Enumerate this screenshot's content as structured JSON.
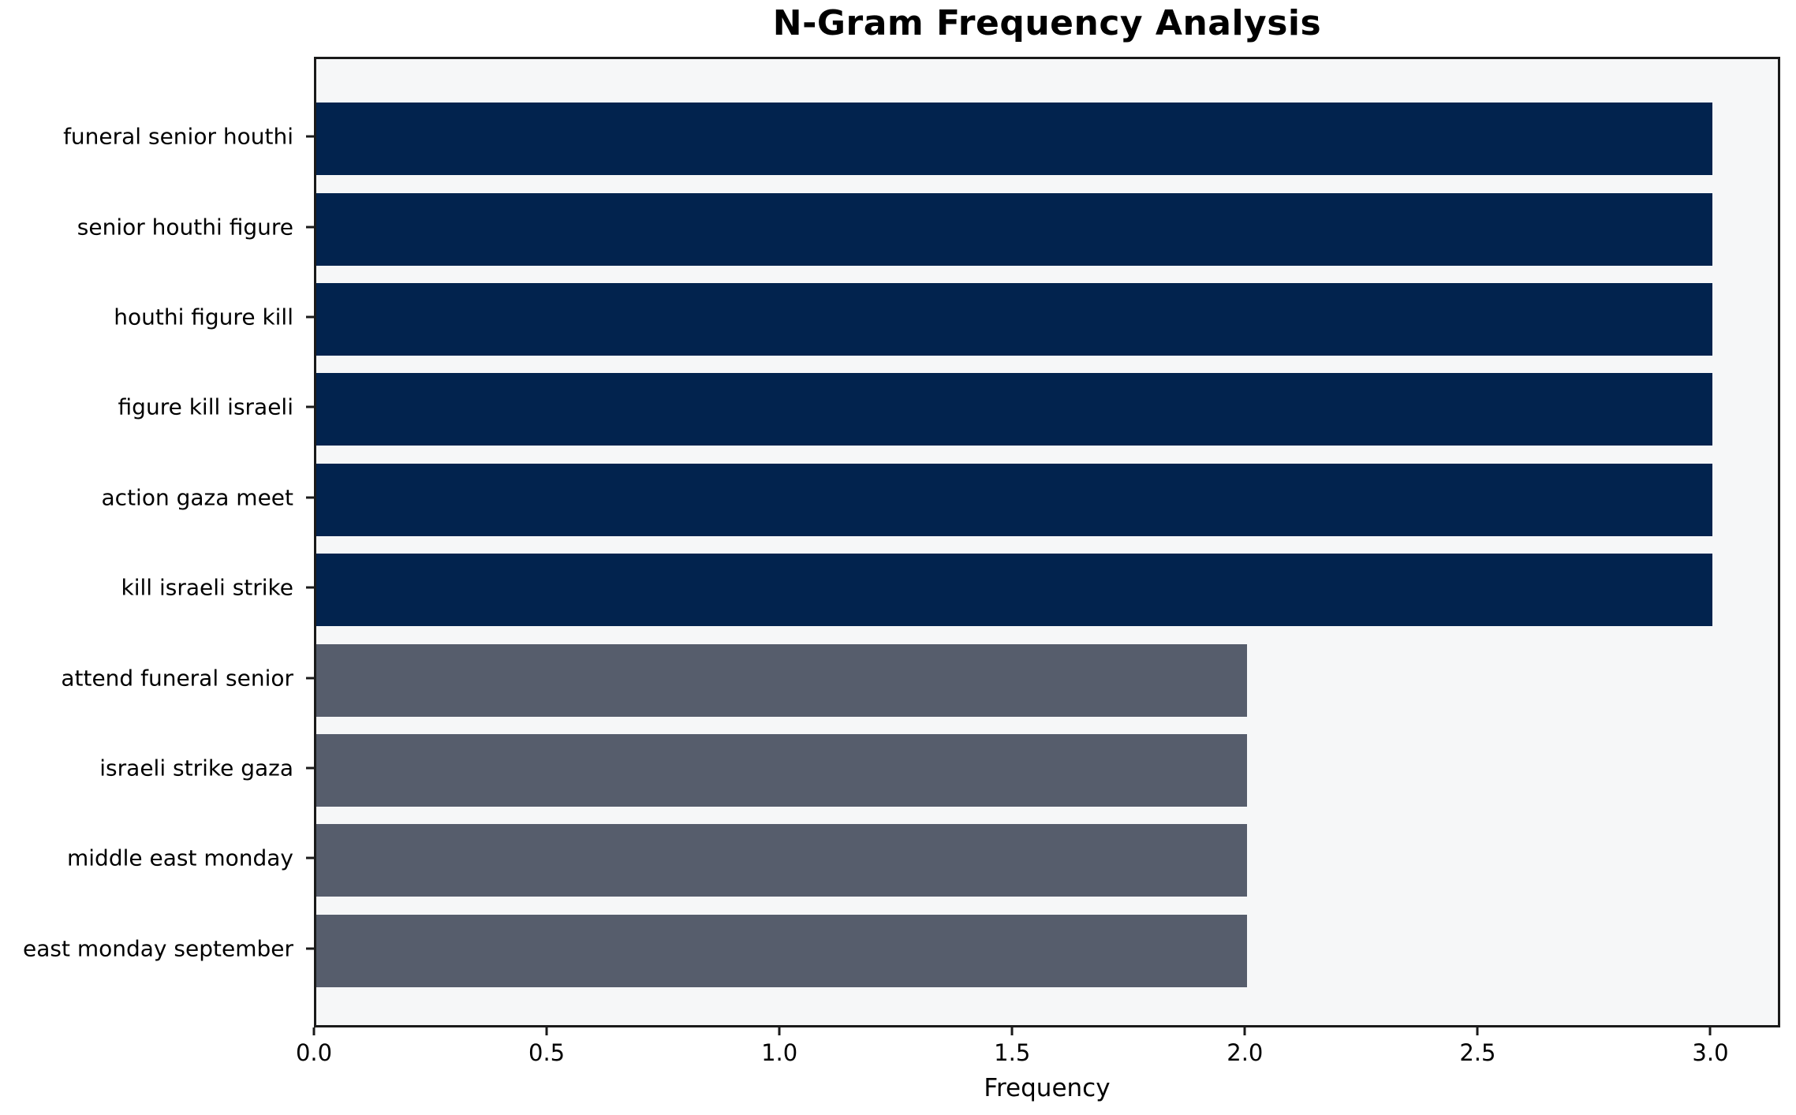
{
  "chart_data": {
    "type": "bar",
    "orientation": "horizontal",
    "title": "N-Gram Frequency Analysis",
    "xlabel": "Frequency",
    "ylabel": "",
    "categories": [
      "funeral senior houthi",
      "senior houthi figure",
      "houthi figure kill",
      "figure kill israeli",
      "action gaza meet",
      "kill israeli strike",
      "attend funeral senior",
      "israeli strike gaza",
      "middle east monday",
      "east monday september"
    ],
    "values": [
      3,
      3,
      3,
      3,
      3,
      3,
      2,
      2,
      2,
      2
    ],
    "bar_colors": [
      "#02234e",
      "#02234e",
      "#02234e",
      "#02234e",
      "#02234e",
      "#02234e",
      "#565d6c",
      "#565d6c",
      "#565d6c",
      "#565d6c"
    ],
    "xlim": [
      0,
      3.15
    ],
    "x_ticks": [
      "0.0",
      "0.5",
      "1.0",
      "1.5",
      "2.0",
      "2.5",
      "3.0"
    ],
    "x_tick_values": [
      0,
      0.5,
      1,
      1.5,
      2,
      2.5,
      3
    ],
    "grid": false,
    "legend": null,
    "colors": {
      "high_frequency_bar": "#02234e",
      "low_frequency_bar": "#565d6c",
      "plot_background": "#f6f7f8",
      "figure_background": "#ffffff",
      "spine": "#1a1a1a",
      "text": "#000000"
    }
  }
}
